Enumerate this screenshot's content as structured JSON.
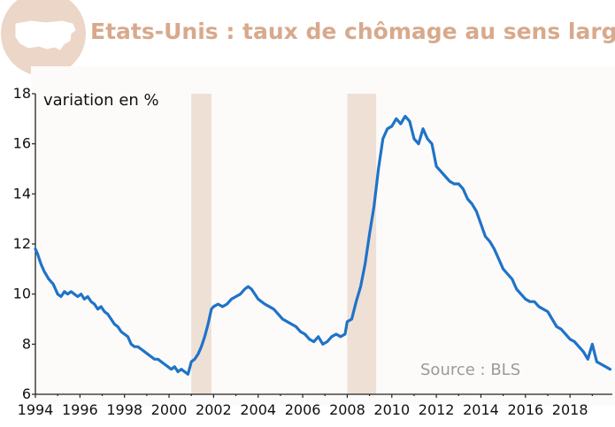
{
  "chart_data": {
    "type": "line",
    "title": "Etats-Unis : taux de chômage au sens large",
    "ylabel": "variation en %",
    "source": "Source : BLS",
    "colors": {
      "title": "#d8a98c",
      "series": "#1f73c8",
      "shading": "#efe0d6",
      "background": "#ffffff",
      "badge": "#ecd6c8"
    },
    "icon": "usa-map-icon",
    "x_range": [
      1994,
      2019.9
    ],
    "ylim": [
      6,
      18
    ],
    "x_ticks": [
      1994,
      1996,
      1998,
      2000,
      2002,
      2004,
      2006,
      2008,
      2010,
      2012,
      2014,
      2016,
      2018
    ],
    "x_tick_labels": [
      "1994",
      "1996",
      "1998",
      "2000",
      "2002",
      "2004",
      "2006",
      "2008",
      "2010",
      "2012",
      "2014",
      "2016",
      "2018"
    ],
    "y_ticks": [
      6,
      8,
      10,
      12,
      14,
      16,
      18
    ],
    "y_tick_labels": [
      "6",
      "8",
      "10",
      "12",
      "14",
      "16",
      "18"
    ],
    "grid": false,
    "recessions": [
      {
        "start": 2001.0,
        "end": 2001.9
      },
      {
        "start": 2008.0,
        "end": 2009.3
      }
    ],
    "series": [
      {
        "name": "",
        "x": [
          1994.0,
          1994.1,
          1994.25,
          1994.4,
          1994.6,
          1994.8,
          1995.0,
          1995.15,
          1995.3,
          1995.45,
          1995.6,
          1995.75,
          1995.9,
          1996.05,
          1996.2,
          1996.35,
          1996.5,
          1996.65,
          1996.8,
          1996.95,
          1997.1,
          1997.25,
          1997.4,
          1997.55,
          1997.7,
          1997.85,
          1998.0,
          1998.15,
          1998.3,
          1998.45,
          1998.6,
          1998.75,
          1998.9,
          1999.05,
          1999.2,
          1999.35,
          1999.5,
          1999.65,
          1999.8,
          1999.95,
          2000.1,
          2000.25,
          2000.4,
          2000.55,
          2000.7,
          2000.85,
          2001.0,
          2001.15,
          2001.3,
          2001.45,
          2001.6,
          2001.75,
          2001.9,
          2002.0,
          2002.2,
          2002.4,
          2002.6,
          2002.8,
          2003.0,
          2003.2,
          2003.4,
          2003.55,
          2003.7,
          2003.85,
          2004.0,
          2004.15,
          2004.3,
          2004.5,
          2004.7,
          2004.9,
          2005.1,
          2005.3,
          2005.5,
          2005.7,
          2005.9,
          2006.1,
          2006.3,
          2006.5,
          2006.7,
          2006.9,
          2007.1,
          2007.3,
          2007.5,
          2007.7,
          2007.9,
          2008.0,
          2008.2,
          2008.4,
          2008.6,
          2008.8,
          2009.0,
          2009.2,
          2009.4,
          2009.6,
          2009.8,
          2010.0,
          2010.2,
          2010.4,
          2010.6,
          2010.8,
          2011.0,
          2011.2,
          2011.4,
          2011.6,
          2011.8,
          2012.0,
          2012.2,
          2012.4,
          2012.6,
          2012.8,
          2013.0,
          2013.2,
          2013.4,
          2013.6,
          2013.8,
          2014.0,
          2014.2,
          2014.4,
          2014.6,
          2014.8,
          2015.0,
          2015.2,
          2015.4,
          2015.6,
          2015.8,
          2016.0,
          2016.2,
          2016.4,
          2016.6,
          2016.8,
          2017.0,
          2017.2,
          2017.4,
          2017.6,
          2017.8,
          2018.0,
          2018.2,
          2018.4,
          2018.6,
          2018.8,
          2019.0,
          2019.2,
          2019.4,
          2019.6,
          2019.8
        ],
        "values": [
          11.8,
          11.6,
          11.2,
          10.9,
          10.6,
          10.4,
          10.0,
          9.9,
          10.1,
          10.0,
          10.1,
          10.0,
          9.9,
          10.0,
          9.8,
          9.9,
          9.7,
          9.6,
          9.4,
          9.5,
          9.3,
          9.2,
          9.0,
          8.8,
          8.7,
          8.5,
          8.4,
          8.3,
          8.0,
          7.9,
          7.9,
          7.8,
          7.7,
          7.6,
          7.5,
          7.4,
          7.4,
          7.3,
          7.2,
          7.1,
          7.0,
          7.1,
          6.9,
          7.0,
          6.9,
          6.8,
          7.3,
          7.4,
          7.6,
          7.9,
          8.3,
          8.8,
          9.4,
          9.5,
          9.6,
          9.5,
          9.6,
          9.8,
          9.9,
          10.0,
          10.2,
          10.3,
          10.2,
          10.0,
          9.8,
          9.7,
          9.6,
          9.5,
          9.4,
          9.2,
          9.0,
          8.9,
          8.8,
          8.7,
          8.5,
          8.4,
          8.2,
          8.1,
          8.3,
          8.0,
          8.1,
          8.3,
          8.4,
          8.3,
          8.4,
          8.9,
          9.0,
          9.7,
          10.3,
          11.2,
          12.4,
          13.5,
          15.0,
          16.2,
          16.6,
          16.7,
          17.0,
          16.8,
          17.1,
          16.9,
          16.2,
          16.0,
          16.6,
          16.2,
          16.0,
          15.1,
          14.9,
          14.7,
          14.5,
          14.4,
          14.4,
          14.2,
          13.8,
          13.6,
          13.3,
          12.8,
          12.3,
          12.1,
          11.8,
          11.4,
          11.0,
          10.8,
          10.6,
          10.2,
          10.0,
          9.8,
          9.7,
          9.7,
          9.5,
          9.4,
          9.3,
          9.0,
          8.7,
          8.6,
          8.4,
          8.2,
          8.1,
          7.9,
          7.7,
          7.4,
          8.0,
          7.3,
          7.2,
          7.1,
          7.0
        ]
      }
    ]
  }
}
